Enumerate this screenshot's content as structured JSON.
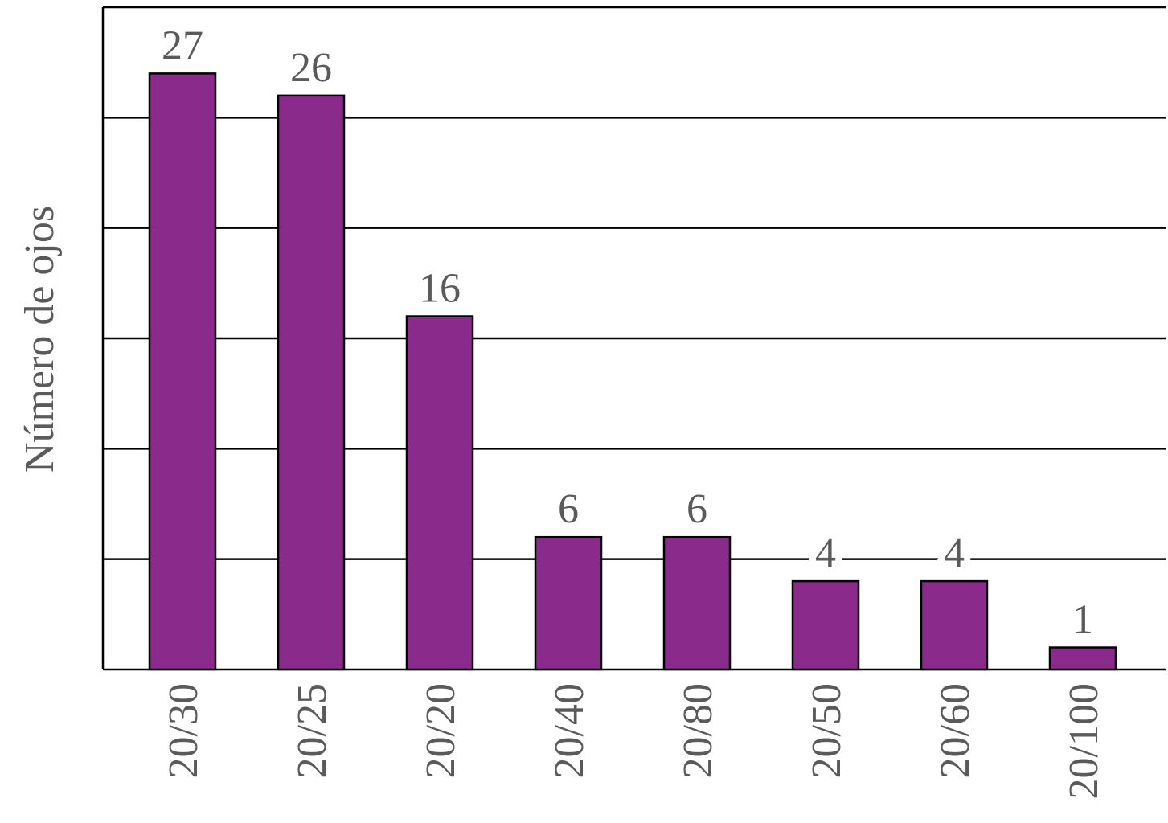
{
  "chart_data": {
    "type": "bar",
    "y_label": "Número de ojos",
    "categories": [
      "20/30",
      "20/25",
      "20/20",
      "20/40",
      "20/80",
      "20/50",
      "20/60",
      "20/100"
    ],
    "values": [
      27,
      26,
      16,
      6,
      6,
      4,
      4,
      1
    ],
    "color": "#8a2b8b",
    "ylim": [
      0,
      30
    ],
    "yticks": [
      0,
      5,
      10,
      15,
      20,
      25,
      30
    ],
    "grid": true
  }
}
